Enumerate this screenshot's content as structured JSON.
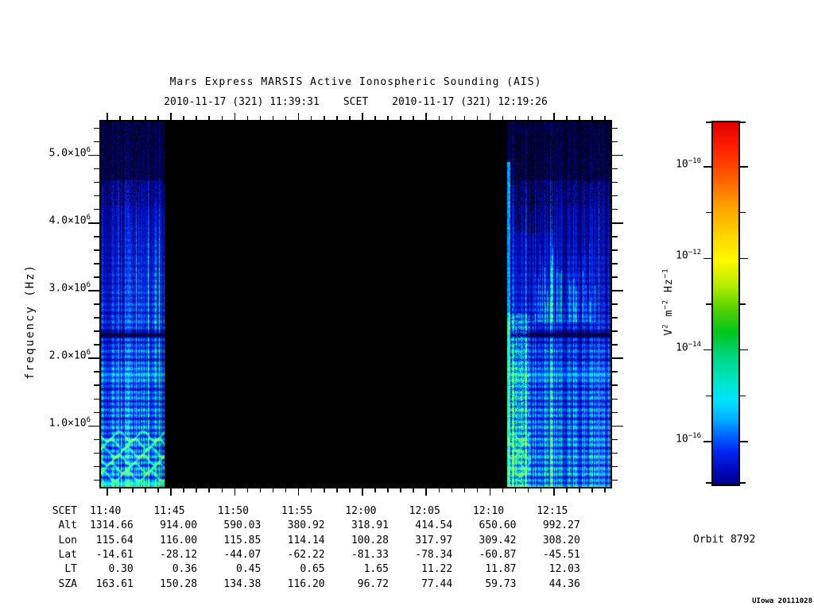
{
  "title": "Mars Express MARSIS Active Ionospheric Sounding (AIS)",
  "header": {
    "start_scet": "2010-11-17 (321) 11:39:31",
    "scet_label": "SCET",
    "end_scet": "2010-11-17 (321) 12:19:26"
  },
  "y_axis": {
    "label": "frequency (Hz)",
    "min_hz": 100000,
    "max_hz": 5500000,
    "minor_step_hz": 200000,
    "major_ticks": [
      {
        "mantissa": "1.0×10",
        "exp": "6",
        "hz": 1000000
      },
      {
        "mantissa": "2.0×10",
        "exp": "6",
        "hz": 2000000
      },
      {
        "mantissa": "3.0×10",
        "exp": "6",
        "hz": 3000000
      },
      {
        "mantissa": "4.0×10",
        "exp": "6",
        "hz": 4000000
      },
      {
        "mantissa": "5.0×10",
        "exp": "6",
        "hz": 5000000
      }
    ]
  },
  "x_axis": {
    "start_scet": "11:39:31",
    "end_scet": "12:19:26",
    "minor_step_seconds": 60,
    "major_step_minutes": 5,
    "major_tick_labels": [
      "11:40",
      "11:45",
      "11:50",
      "11:55",
      "12:00",
      "12:05",
      "12:10",
      "12:15"
    ]
  },
  "colorbar": {
    "unit_plain": "V^2 m^-2 Hz^-1",
    "label_parts": [
      {
        "text": "V"
      },
      {
        "sup": "2"
      },
      {
        "text": " m"
      },
      {
        "sup": "−2"
      },
      {
        "text": " Hz"
      },
      {
        "sup": "−1"
      }
    ],
    "labeled_exponents": [
      -10,
      -12,
      -14,
      -16
    ],
    "minor_exponents": [
      -9,
      -11,
      -13,
      -15,
      -17
    ],
    "gradient": [
      [
        0.0,
        "#dd0000"
      ],
      [
        0.07,
        "#ff1e00"
      ],
      [
        0.15,
        "#ff5a00"
      ],
      [
        0.23,
        "#ff9e00"
      ],
      [
        0.31,
        "#ffd300"
      ],
      [
        0.38,
        "#fff800"
      ],
      [
        0.45,
        "#b5ec00"
      ],
      [
        0.52,
        "#4ed000"
      ],
      [
        0.58,
        "#00c61e"
      ],
      [
        0.65,
        "#00d685"
      ],
      [
        0.71,
        "#00e4c2"
      ],
      [
        0.77,
        "#00e2ff"
      ],
      [
        0.82,
        "#00aeff"
      ],
      [
        0.87,
        "#005eff"
      ],
      [
        0.91,
        "#0026f0"
      ],
      [
        0.96,
        "#0009c0"
      ],
      [
        1.0,
        "#000083"
      ]
    ]
  },
  "table": {
    "rows": [
      {
        "label": "SCET",
        "values": [
          "11:40",
          "11:45",
          "11:50",
          "11:55",
          "12:00",
          "12:05",
          "12:10",
          "12:15"
        ]
      },
      {
        "label": "Alt",
        "values": [
          "1314.66",
          "914.00",
          "590.03",
          "380.92",
          "318.91",
          "414.54",
          "650.60",
          "992.27"
        ]
      },
      {
        "label": "Lon",
        "values": [
          "115.64",
          "116.00",
          "115.85",
          "114.14",
          "100.28",
          "317.97",
          "309.42",
          "308.20"
        ]
      },
      {
        "label": "Lat",
        "values": [
          "-14.61",
          "-28.12",
          "-44.07",
          "-62.22",
          "-81.33",
          "-78.34",
          "-60.87",
          "-45.51"
        ]
      },
      {
        "label": "LT",
        "values": [
          "0.30",
          "0.36",
          "0.45",
          "0.65",
          "1.65",
          "11.22",
          "11.87",
          "12.03"
        ]
      },
      {
        "label": "SZA",
        "values": [
          "163.61",
          "150.28",
          "134.38",
          "116.20",
          "96.72",
          "77.44",
          "59.73",
          "44.36"
        ]
      }
    ]
  },
  "orbit_label": "Orbit 8792",
  "stamp": "UIowa 20111028",
  "colors": {
    "page_bg": "#ffffff",
    "plot_bg": "#000000",
    "text": "#000000",
    "spectrum_low": "#000090",
    "spectrum_mid": "#0080ff",
    "spectrum_high": "#40ff9f"
  },
  "chart_data": {
    "type": "heatmap",
    "title": "Mars Express MARSIS Active Ionospheric Sounding (AIS)",
    "xlabel": "SCET",
    "ylabel": "frequency (Hz)",
    "x_range": [
      "11:39:31",
      "12:19:26"
    ],
    "x_tick_labels": [
      "11:40",
      "11:45",
      "11:50",
      "11:55",
      "12:00",
      "12:05",
      "12:10",
      "12:15"
    ],
    "y_range_hz": [
      100000,
      5500000
    ],
    "y_tick_values_hz": [
      1000000,
      2000000,
      3000000,
      4000000,
      5000000
    ],
    "value_scale": {
      "unit": "V^2 m^-2 Hz^-1",
      "scale": "log",
      "colorbar_labeled_decades": [
        1e-10,
        1e-12,
        1e-14,
        1e-16
      ],
      "colormap": "rainbow (red = high intensity, dark blue = low)"
    },
    "data_segments": [
      {
        "label": "left-data-band",
        "time_start": "11:39:31",
        "time_end": "~11:44:30",
        "content": "low-intensity blue spectra with vertical sounding striations; darker speckled region above ~4 MHz; bright cyan-green wavy ionospheric echo traces below ~0.9 MHz"
      },
      {
        "label": "data-gap",
        "time_start": "~11:44:30",
        "time_end": "~12:10:00",
        "content": "no data (black)"
      },
      {
        "label": "right-data-band",
        "time_start": "~12:10:00",
        "time_end": "12:19:26",
        "content": "blue spectra; dark vertical dropouts above ~4 MHz near 12:10-12:12; cluster of bright cyan vertical streaks near 1.6-2.1 MHz; dense cyan-green echo texture below ~1 MHz near 12:10-12:13"
      }
    ],
    "features": [
      {
        "label": "absorption-line",
        "frequency_hz": 2350000,
        "description": "narrow dark horizontal line crossing both data bands"
      },
      {
        "label": "bright-horizontal-line",
        "frequency_hz": 1150000,
        "description": "thin bright cyan line across both data bands"
      }
    ],
    "ephemeris_table": {
      "row_labels": [
        "SCET",
        "Alt",
        "Lon",
        "Lat",
        "LT",
        "SZA"
      ],
      "columns": [
        "11:40",
        "11:45",
        "11:50",
        "11:55",
        "12:00",
        "12:05",
        "12:10",
        "12:15"
      ],
      "Alt": [
        1314.66,
        914.0,
        590.03,
        380.92,
        318.91,
        414.54,
        650.6,
        992.27
      ],
      "Lon": [
        115.64,
        116.0,
        115.85,
        114.14,
        100.28,
        317.97,
        309.42,
        308.2
      ],
      "Lat": [
        -14.61,
        -28.12,
        -44.07,
        -62.22,
        -81.33,
        -78.34,
        -60.87,
        -45.51
      ],
      "LT": [
        0.3,
        0.36,
        0.45,
        0.65,
        1.65,
        11.22,
        11.87,
        12.03
      ],
      "SZA": [
        163.61,
        150.28,
        134.38,
        116.2,
        96.72,
        77.44,
        59.73,
        44.36
      ]
    },
    "annotations": [
      "Orbit 8792",
      "UIowa 20111028"
    ]
  }
}
